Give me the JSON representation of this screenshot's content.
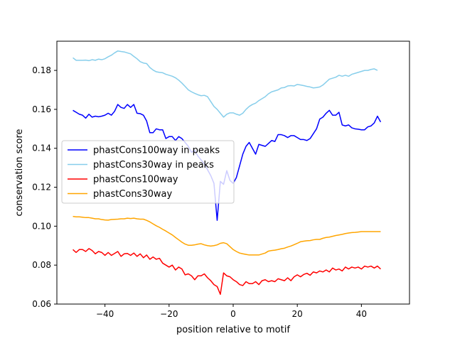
{
  "chart_data": {
    "type": "line",
    "title": "",
    "xlabel": "position relative to motif",
    "ylabel": "conservation score",
    "xlim": [
      -55,
      55
    ],
    "ylim": [
      0.06,
      0.195
    ],
    "xticks": [
      -40,
      -20,
      0,
      20,
      40
    ],
    "yticks": [
      0.06,
      0.08,
      0.1,
      0.12,
      0.14,
      0.16,
      0.18
    ],
    "ytick_labels": [
      "0.06",
      "0.08",
      "0.10",
      "0.12",
      "0.14",
      "0.16",
      "0.18"
    ],
    "grid": false,
    "legend": "center-left",
    "x_start": -50,
    "x_step": 1,
    "series": [
      {
        "name": "phastCons100way in peaks",
        "color": "#0000ff",
        "values": [
          0.1595,
          0.1585,
          0.1575,
          0.157,
          0.1555,
          0.1575,
          0.156,
          0.1565,
          0.1562,
          0.1565,
          0.157,
          0.158,
          0.157,
          0.159,
          0.1625,
          0.161,
          0.1605,
          0.1625,
          0.161,
          0.1625,
          0.158,
          0.1578,
          0.157,
          0.154,
          0.148,
          0.148,
          0.15,
          0.1495,
          0.1495,
          0.145,
          0.146,
          0.146,
          0.144,
          0.146,
          0.145,
          0.143,
          0.141,
          0.138,
          0.139,
          0.136,
          0.134,
          0.132,
          0.129,
          0.126,
          0.122,
          0.103,
          0.123,
          0.1215,
          0.1285,
          0.1235,
          0.122,
          0.125,
          0.131,
          0.137,
          0.141,
          0.143,
          0.14,
          0.137,
          0.142,
          0.1415,
          0.141,
          0.1425,
          0.144,
          0.1435,
          0.147,
          0.147,
          0.1465,
          0.1455,
          0.1465,
          0.1465,
          0.1455,
          0.1445,
          0.1445,
          0.144,
          0.145,
          0.1475,
          0.15,
          0.155,
          0.156,
          0.158,
          0.1595,
          0.157,
          0.157,
          0.1585,
          0.152,
          0.1515,
          0.152,
          0.1505,
          0.15,
          0.1498,
          0.1495,
          0.1495,
          0.151,
          0.1515,
          0.153,
          0.1565,
          0.1535
        ]
      },
      {
        "name": "phastCons30way in peaks",
        "color": "#87ceeb",
        "values": [
          0.1865,
          0.1852,
          0.1852,
          0.1852,
          0.1853,
          0.185,
          0.1855,
          0.1852,
          0.1858,
          0.1855,
          0.186,
          0.187,
          0.1878,
          0.189,
          0.19,
          0.1897,
          0.1895,
          0.189,
          0.1885,
          0.1872,
          0.186,
          0.1845,
          0.1838,
          0.1835,
          0.1815,
          0.1802,
          0.1793,
          0.179,
          0.1788,
          0.178,
          0.1775,
          0.177,
          0.1762,
          0.175,
          0.1735,
          0.1718,
          0.17,
          0.169,
          0.1682,
          0.1675,
          0.167,
          0.1672,
          0.1665,
          0.164,
          0.1615,
          0.16,
          0.158,
          0.156,
          0.1575,
          0.1582,
          0.1582,
          0.1575,
          0.157,
          0.158,
          0.16,
          0.1615,
          0.1625,
          0.1632,
          0.1645,
          0.1655,
          0.1665,
          0.168,
          0.169,
          0.1695,
          0.17,
          0.171,
          0.1712,
          0.172,
          0.1722,
          0.172,
          0.1728,
          0.1725,
          0.1722,
          0.1718,
          0.1715,
          0.171,
          0.1712,
          0.1715,
          0.1725,
          0.174,
          0.1755,
          0.176,
          0.1765,
          0.1775,
          0.177,
          0.1775,
          0.177,
          0.178,
          0.1785,
          0.179,
          0.1795,
          0.18,
          0.18,
          0.1805,
          0.1808,
          0.18
        ]
      },
      {
        "name": "phastCons100way",
        "color": "#ff0000",
        "values": [
          0.088,
          0.0865,
          0.088,
          0.088,
          0.087,
          0.0885,
          0.0875,
          0.0858,
          0.087,
          0.0865,
          0.085,
          0.0865,
          0.085,
          0.086,
          0.087,
          0.0845,
          0.0858,
          0.086,
          0.085,
          0.0862,
          0.0845,
          0.0858,
          0.0838,
          0.0852,
          0.083,
          0.0842,
          0.083,
          0.0835,
          0.081,
          0.08,
          0.079,
          0.08,
          0.0775,
          0.079,
          0.078,
          0.075,
          0.0755,
          0.0745,
          0.0725,
          0.0745,
          0.0745,
          0.0755,
          0.0735,
          0.072,
          0.07,
          0.069,
          0.065,
          0.076,
          0.0745,
          0.074,
          0.0725,
          0.0715,
          0.07,
          0.0695,
          0.0715,
          0.0705,
          0.0705,
          0.0715,
          0.07,
          0.072,
          0.0725,
          0.0715,
          0.072,
          0.0715,
          0.073,
          0.0725,
          0.072,
          0.0735,
          0.072,
          0.074,
          0.075,
          0.074,
          0.0752,
          0.0758,
          0.0748,
          0.0765,
          0.076,
          0.077,
          0.0765,
          0.0775,
          0.0765,
          0.0785,
          0.0775,
          0.078,
          0.077,
          0.079,
          0.078,
          0.079,
          0.0785,
          0.079,
          0.078,
          0.0795,
          0.079,
          0.0795,
          0.0785,
          0.0795,
          0.078
        ]
      },
      {
        "name": "phastCons30way",
        "color": "#ffa500",
        "values": [
          0.105,
          0.1048,
          0.1048,
          0.1046,
          0.1044,
          0.1044,
          0.1041,
          0.1038,
          0.1038,
          0.1034,
          0.1032,
          0.1031,
          0.1034,
          0.1035,
          0.1036,
          0.1038,
          0.1038,
          0.1041,
          0.1039,
          0.1041,
          0.1038,
          0.1036,
          0.1036,
          0.103,
          0.1022,
          0.1012,
          0.1002,
          0.0994,
          0.0984,
          0.0975,
          0.0965,
          0.0955,
          0.0942,
          0.093,
          0.0918,
          0.0908,
          0.0902,
          0.0902,
          0.0904,
          0.0908,
          0.091,
          0.0904,
          0.09,
          0.0898,
          0.09,
          0.0904,
          0.0912,
          0.0915,
          0.091,
          0.0895,
          0.088,
          0.087,
          0.0862,
          0.0858,
          0.0855,
          0.0852,
          0.0852,
          0.0852,
          0.0852,
          0.0857,
          0.0862,
          0.0872,
          0.0875,
          0.0877,
          0.088,
          0.0884,
          0.0887,
          0.0893,
          0.0898,
          0.0905,
          0.0912,
          0.092,
          0.0923,
          0.0925,
          0.0926,
          0.093,
          0.0932,
          0.0932,
          0.0938,
          0.0942,
          0.0944,
          0.0948,
          0.0952,
          0.0955,
          0.0958,
          0.0962,
          0.0965,
          0.0967,
          0.0968,
          0.097,
          0.0972,
          0.0972,
          0.0972,
          0.0972,
          0.0972,
          0.0972,
          0.0972
        ]
      }
    ]
  }
}
